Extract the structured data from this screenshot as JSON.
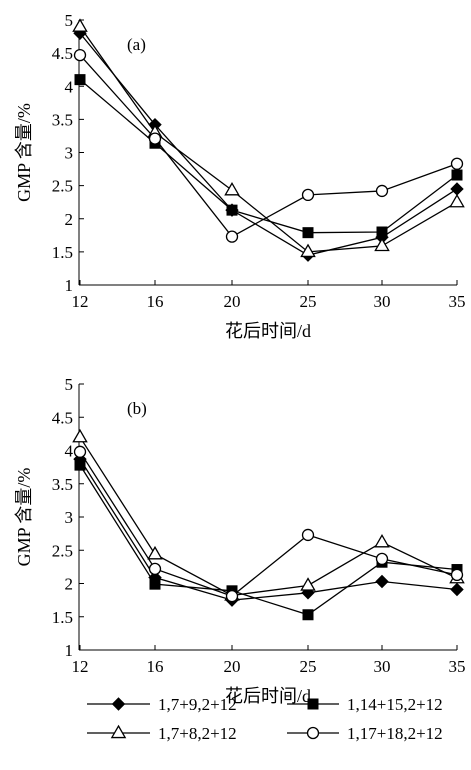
{
  "chart_data": [
    {
      "type": "line",
      "panel_label": "(a)",
      "ylabel": "GMP 含量/%",
      "xlabel": "花后时间/d",
      "x": [
        12,
        16,
        20,
        25,
        30,
        35
      ],
      "x_ticks": [
        "12",
        "16",
        "20",
        "25",
        "30",
        "35"
      ],
      "ylim": [
        1,
        5
      ],
      "y_ticks": [
        "1",
        "1.5",
        "2",
        "2.5",
        "3",
        "3.5",
        "4",
        "4.5",
        "5"
      ],
      "grid": false,
      "series": [
        {
          "name": "1,7+9,2+12",
          "marker": "diamond-filled",
          "values": [
            4.8,
            3.42,
            2.13,
            1.45,
            1.72,
            2.45
          ]
        },
        {
          "name": "1,14+15,2+12",
          "marker": "square-filled",
          "values": [
            4.1,
            3.14,
            2.13,
            1.79,
            1.8,
            2.66
          ]
        },
        {
          "name": "1,7+8,2+12",
          "marker": "triangle-open",
          "values": [
            4.9,
            3.3,
            2.43,
            1.5,
            1.59,
            2.25
          ]
        },
        {
          "name": "1,17+18,2+12",
          "marker": "circle-open",
          "values": [
            4.47,
            3.21,
            1.73,
            2.36,
            2.42,
            2.83
          ]
        }
      ]
    },
    {
      "type": "line",
      "panel_label": "(b)",
      "ylabel": "GMP 含量/%",
      "xlabel": "花后时间/d",
      "x": [
        12,
        16,
        20,
        25,
        30,
        35
      ],
      "x_ticks": [
        "12",
        "16",
        "20",
        "25",
        "30",
        "35"
      ],
      "ylim": [
        1,
        5
      ],
      "y_ticks": [
        "1",
        "1.5",
        "2",
        "2.5",
        "3",
        "3.5",
        "4",
        "4.5",
        "5"
      ],
      "grid": false,
      "series": [
        {
          "name": "1,7+9,2+12",
          "marker": "diamond-filled",
          "values": [
            3.87,
            2.09,
            1.75,
            1.86,
            2.03,
            1.91
          ]
        },
        {
          "name": "1,14+15,2+12",
          "marker": "square-filled",
          "values": [
            3.78,
            1.99,
            1.89,
            1.53,
            2.32,
            2.21
          ]
        },
        {
          "name": "1,7+8,2+12",
          "marker": "triangle-open",
          "values": [
            4.2,
            2.44,
            1.82,
            1.97,
            2.62,
            2.08
          ]
        },
        {
          "name": "1,17+18,2+12",
          "marker": "circle-open",
          "values": [
            3.98,
            2.22,
            1.81,
            2.73,
            2.37,
            2.13
          ]
        }
      ]
    }
  ],
  "legend": {
    "placement": "bottom",
    "entries": [
      {
        "label": "1,7+9,2+12",
        "marker": "diamond-filled"
      },
      {
        "label": "1,14+15,2+12",
        "marker": "square-filled"
      },
      {
        "label": "1,7+8,2+12",
        "marker": "triangle-open"
      },
      {
        "label": "1,17+18,2+12",
        "marker": "circle-open"
      }
    ]
  },
  "colors": {
    "line": "#000000",
    "background": "#ffffff"
  }
}
